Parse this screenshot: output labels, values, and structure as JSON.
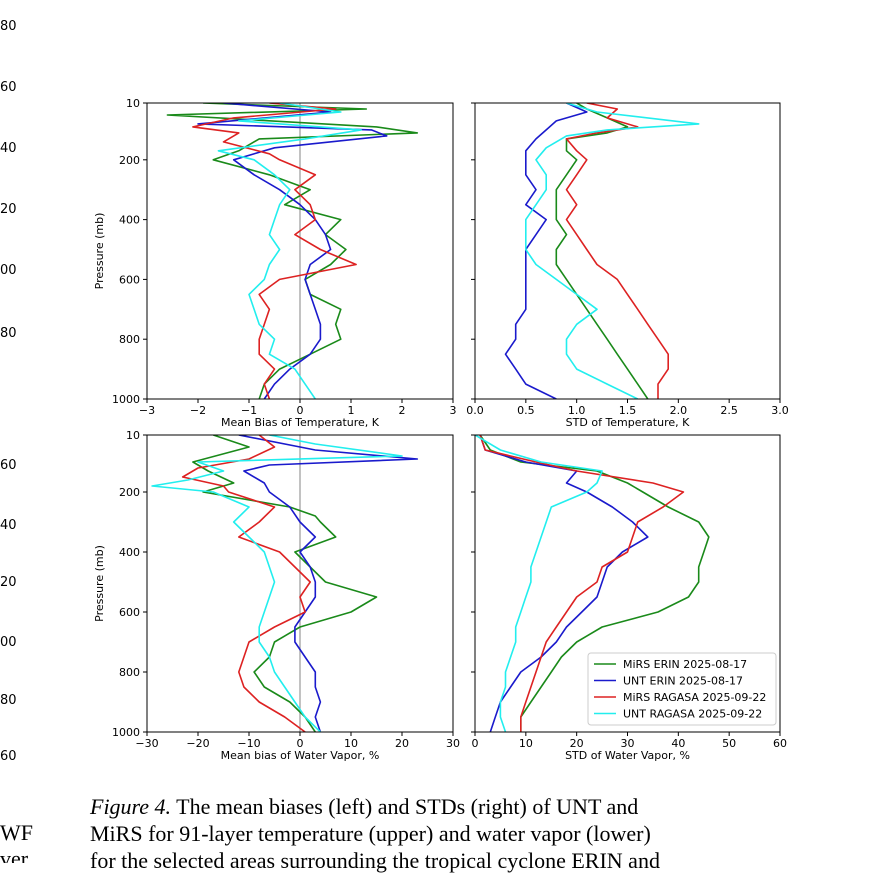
{
  "left_edge_fragments": {
    "numbers": [
      "80",
      "60",
      "40",
      "20",
      "00",
      "80",
      "60",
      "40",
      "20",
      "00",
      "80",
      "60"
    ],
    "words": [
      "WF",
      "ver"
    ]
  },
  "caption": {
    "label": "Figure 4.",
    "line1": "The mean biases (left) and STDs (right) of UNT and",
    "line2": "MiRS for 91-layer temperature (upper) and water vapor (lower)",
    "line3": "for the selected areas surrounding the tropical cyclone ERIN and"
  },
  "colors": {
    "MiRS ERIN 2025-08-17": "#1a8a1a",
    "UNT ERIN 2025-08-17": "#1a1acc",
    "MiRS RAGASA 2025-09-22": "#dd2222",
    "UNT RAGASA 2025-09-22": "#22eeee",
    "zero_line": "#999999"
  },
  "legend": {
    "placement": "lower-right",
    "entries": [
      "MiRS ERIN 2025-08-17",
      "UNT ERIN 2025-08-17",
      "MiRS RAGASA 2025-09-22",
      "UNT RAGASA 2025-09-22"
    ]
  },
  "chart_data": [
    {
      "id": "temp_bias",
      "type": "line",
      "xlabel": "Mean Bias of Temperature, K",
      "ylabel": "Pressure (mb)",
      "xlim": [
        -3,
        3
      ],
      "ylim": [
        1000,
        10
      ],
      "xticks": [
        "−3",
        "−2",
        "−1",
        "0",
        "1",
        "2",
        "3"
      ],
      "yticks": [
        "10",
        "200",
        "400",
        "600",
        "800",
        "1000"
      ],
      "zero_line": true,
      "series": [
        {
          "name": "MiRS ERIN 2025-08-17",
          "p": [
            10,
            30,
            50,
            90,
            110,
            130,
            170,
            200,
            250,
            300,
            350,
            400,
            450,
            500,
            550,
            600,
            650,
            700,
            750,
            800,
            850,
            900,
            950,
            1000
          ],
          "v": [
            -1.9,
            1.3,
            -2.6,
            1.5,
            2.3,
            -0.8,
            -1.2,
            -1.7,
            -0.6,
            0.2,
            -0.3,
            0.8,
            0.5,
            0.9,
            0.6,
            0.1,
            0.2,
            0.8,
            0.7,
            0.8,
            0.2,
            -0.4,
            -0.7,
            -0.8
          ]
        },
        {
          "name": "UNT ERIN 2025-08-17",
          "p": [
            10,
            40,
            80,
            100,
            120,
            160,
            200,
            250,
            300,
            350,
            400,
            450,
            500,
            550,
            600,
            650,
            700,
            750,
            800,
            850,
            900,
            950,
            1000
          ],
          "v": [
            -1.5,
            0.6,
            -2.0,
            1.4,
            1.7,
            -0.5,
            -1.3,
            -0.9,
            -0.4,
            0.0,
            0.3,
            0.5,
            0.6,
            0.2,
            0.1,
            0.2,
            0.3,
            0.4,
            0.4,
            0.2,
            -0.2,
            -0.5,
            -0.7
          ]
        },
        {
          "name": "MiRS RAGASA 2025-09-22",
          "p": [
            10,
            30,
            60,
            90,
            110,
            140,
            180,
            200,
            250,
            300,
            350,
            400,
            450,
            500,
            550,
            600,
            650,
            700,
            750,
            800,
            850,
            900,
            950,
            1000
          ],
          "v": [
            -0.6,
            0.7,
            -1.3,
            -2.1,
            -1.2,
            -1.5,
            -0.6,
            -0.4,
            0.3,
            -0.1,
            0.2,
            0.3,
            -0.1,
            0.4,
            1.1,
            -0.4,
            -0.8,
            -0.6,
            -0.7,
            -0.8,
            -0.8,
            -0.5,
            -0.7,
            -0.6
          ]
        },
        {
          "name": "UNT RAGASA 2025-09-22",
          "p": [
            10,
            40,
            70,
            100,
            130,
            170,
            200,
            250,
            300,
            350,
            400,
            450,
            500,
            550,
            600,
            650,
            700,
            750,
            800,
            850,
            900,
            950,
            1000
          ],
          "v": [
            -0.4,
            0.8,
            -1.2,
            1.2,
            0.1,
            -1.6,
            -0.9,
            -0.5,
            -0.2,
            -0.4,
            -0.5,
            -0.6,
            -0.4,
            -0.6,
            -0.7,
            -1.0,
            -0.9,
            -0.8,
            -0.5,
            -0.6,
            -0.1,
            0.1,
            0.3
          ]
        }
      ]
    },
    {
      "id": "temp_std",
      "type": "line",
      "xlabel": "STD of Temperature, K",
      "xlim": [
        0.0,
        3.0
      ],
      "ylim": [
        1000,
        10
      ],
      "xticks": [
        "0.0",
        "0.5",
        "1.0",
        "1.5",
        "2.0",
        "2.5",
        "3.0"
      ],
      "series": [
        {
          "name": "MiRS ERIN 2025-08-17",
          "p": [
            10,
            30,
            60,
            90,
            110,
            130,
            170,
            200,
            250,
            300,
            350,
            400,
            450,
            500,
            550,
            600,
            650,
            700,
            750,
            800,
            850,
            900,
            950,
            1000
          ],
          "v": [
            1.0,
            1.1,
            1.3,
            1.5,
            1.3,
            0.9,
            0.9,
            1.0,
            0.9,
            0.8,
            0.8,
            0.8,
            0.9,
            0.8,
            0.8,
            0.9,
            1.0,
            1.1,
            1.2,
            1.3,
            1.4,
            1.5,
            1.6,
            1.7
          ]
        },
        {
          "name": "UNT ERIN 2025-08-17",
          "p": [
            10,
            40,
            70,
            100,
            130,
            170,
            200,
            250,
            300,
            350,
            400,
            450,
            500,
            550,
            600,
            650,
            700,
            750,
            800,
            850,
            900,
            950,
            1000
          ],
          "v": [
            0.9,
            1.1,
            0.8,
            0.7,
            0.6,
            0.5,
            0.5,
            0.5,
            0.6,
            0.5,
            0.7,
            0.6,
            0.5,
            0.5,
            0.5,
            0.5,
            0.5,
            0.4,
            0.4,
            0.3,
            0.4,
            0.5,
            0.8
          ]
        },
        {
          "name": "MiRS RAGASA 2025-09-22",
          "p": [
            10,
            30,
            60,
            90,
            110,
            130,
            170,
            200,
            250,
            300,
            350,
            400,
            450,
            500,
            550,
            600,
            650,
            700,
            750,
            800,
            850,
            900,
            950,
            1000
          ],
          "v": [
            1.1,
            1.4,
            1.3,
            1.6,
            1.2,
            0.9,
            1.0,
            1.1,
            1.0,
            0.9,
            1.0,
            0.9,
            1.0,
            1.1,
            1.2,
            1.4,
            1.5,
            1.6,
            1.7,
            1.8,
            1.9,
            1.9,
            1.8,
            1.8
          ]
        },
        {
          "name": "UNT RAGASA 2025-09-22",
          "p": [
            10,
            40,
            80,
            100,
            120,
            160,
            200,
            250,
            300,
            350,
            400,
            450,
            500,
            550,
            600,
            650,
            700,
            750,
            800,
            850,
            900,
            950,
            1000
          ],
          "v": [
            0.9,
            1.2,
            2.2,
            1.3,
            0.9,
            0.7,
            0.6,
            0.7,
            0.7,
            0.6,
            0.5,
            0.5,
            0.5,
            0.6,
            0.8,
            1.0,
            1.2,
            1.0,
            0.9,
            0.9,
            1.0,
            1.3,
            1.6
          ]
        }
      ]
    },
    {
      "id": "wv_bias",
      "type": "line",
      "xlabel": "Mean bias of Water Vapor, %",
      "ylabel": "Pressure (mb)",
      "xlim": [
        -30,
        30
      ],
      "ylim": [
        1000,
        10
      ],
      "xticks": [
        "−30",
        "−20",
        "−10",
        "0",
        "10",
        "20",
        "30"
      ],
      "yticks": [
        "10",
        "200",
        "400",
        "600",
        "800",
        "1000"
      ],
      "zero_line": true,
      "series": [
        {
          "name": "MiRS ERIN 2025-08-17",
          "p": [
            10,
            50,
            100,
            130,
            170,
            200,
            250,
            280,
            300,
            350,
            400,
            450,
            500,
            550,
            600,
            650,
            700,
            750,
            800,
            850,
            900,
            950,
            1000
          ],
          "v": [
            -17,
            -10,
            -21,
            -18,
            -13,
            -19,
            -2,
            3,
            4,
            7,
            -1,
            2,
            5,
            15,
            10,
            0,
            -5,
            -6,
            -9,
            -7,
            -2,
            1,
            3
          ]
        },
        {
          "name": "UNT ERIN 2025-08-17",
          "p": [
            10,
            60,
            90,
            110,
            130,
            170,
            200,
            250,
            300,
            350,
            400,
            450,
            500,
            550,
            600,
            650,
            700,
            750,
            800,
            850,
            900,
            950,
            1000
          ],
          "v": [
            -12,
            3,
            23,
            -6,
            -11,
            -7,
            -6,
            -2,
            0,
            3,
            0,
            2,
            3,
            3,
            1,
            -1,
            -1,
            1,
            3,
            3,
            4,
            3,
            4
          ]
        },
        {
          "name": "MiRS RAGASA 2025-09-22",
          "p": [
            10,
            50,
            90,
            120,
            150,
            180,
            200,
            250,
            300,
            350,
            400,
            450,
            500,
            550,
            600,
            650,
            700,
            750,
            800,
            850,
            900,
            950,
            1000
          ],
          "v": [
            -8,
            -5,
            -10,
            -20,
            -23,
            -15,
            -14,
            -5,
            -8,
            -12,
            -4,
            -1,
            2,
            0,
            1,
            -5,
            -10,
            -11,
            -12,
            -11,
            -8,
            -3,
            1
          ]
        },
        {
          "name": "UNT RAGASA 2025-09-22",
          "p": [
            10,
            40,
            80,
            100,
            130,
            160,
            180,
            200,
            250,
            300,
            350,
            400,
            450,
            500,
            550,
            600,
            650,
            700,
            750,
            800,
            850,
            900,
            950,
            1000
          ],
          "v": [
            -6,
            3,
            20,
            -20,
            -15,
            -22,
            -29,
            -17,
            -10,
            -13,
            -10,
            -7,
            -6,
            -5,
            -6,
            -7,
            -8,
            -8,
            -6,
            -5,
            -3,
            -1,
            1,
            4
          ]
        }
      ]
    },
    {
      "id": "wv_std",
      "type": "line",
      "xlabel": "STD of Water Vapor, %",
      "xlim": [
        0,
        60
      ],
      "ylim": [
        1000,
        10
      ],
      "xticks": [
        "0",
        "10",
        "20",
        "30",
        "40",
        "50",
        "60"
      ],
      "series": [
        {
          "name": "MiRS ERIN 2025-08-17",
          "p": [
            10,
            60,
            100,
            130,
            170,
            200,
            250,
            300,
            350,
            400,
            450,
            500,
            550,
            600,
            650,
            700,
            750,
            800,
            850,
            900,
            950,
            1000
          ],
          "v": [
            1,
            3,
            9,
            24,
            30,
            33,
            38,
            44,
            46,
            45,
            44,
            44,
            42,
            36,
            25,
            20,
            17,
            15,
            13,
            11,
            9,
            9
          ]
        },
        {
          "name": "UNT ERIN 2025-08-17",
          "p": [
            10,
            60,
            100,
            130,
            170,
            200,
            250,
            300,
            350,
            400,
            450,
            500,
            550,
            600,
            650,
            700,
            750,
            800,
            850,
            900,
            950,
            1000
          ],
          "v": [
            1,
            2,
            10,
            20,
            18,
            22,
            27,
            31,
            34,
            29,
            26,
            25,
            24,
            21,
            18,
            16,
            13,
            9,
            7,
            5,
            4,
            3
          ]
        },
        {
          "name": "MiRS RAGASA 2025-09-22",
          "p": [
            10,
            60,
            100,
            130,
            170,
            200,
            250,
            300,
            350,
            400,
            450,
            500,
            550,
            600,
            650,
            700,
            750,
            800,
            850,
            900,
            950,
            1000
          ],
          "v": [
            1,
            2,
            12,
            20,
            35,
            41,
            37,
            32,
            31,
            30,
            25,
            24,
            20,
            18,
            16,
            14,
            13,
            12,
            11,
            10,
            9,
            9
          ]
        },
        {
          "name": "UNT RAGASA 2025-09-22",
          "p": [
            10,
            60,
            100,
            130,
            170,
            200,
            250,
            300,
            350,
            400,
            450,
            500,
            550,
            600,
            650,
            700,
            750,
            800,
            850,
            900,
            950,
            1000
          ],
          "v": [
            0,
            5,
            13,
            25,
            24,
            22,
            15,
            14,
            13,
            12,
            11,
            11,
            10,
            9,
            8,
            8,
            7,
            6,
            6,
            5,
            5,
            6
          ]
        }
      ]
    }
  ]
}
